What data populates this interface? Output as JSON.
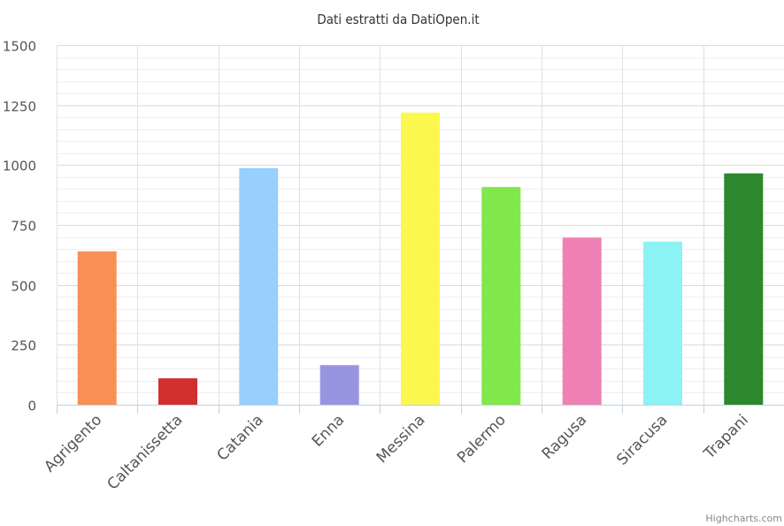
{
  "chart_data": {
    "type": "bar",
    "title": "Dati estratti da DatiOpen.it",
    "xlabel": "",
    "ylabel": "",
    "categories": [
      "Agrigento",
      "Caltanissetta",
      "Catania",
      "Enna",
      "Messina",
      "Palermo",
      "Ragusa",
      "Siracusa",
      "Trapani"
    ],
    "values": [
      640,
      110,
      987,
      165,
      1218,
      908,
      697,
      680,
      965
    ],
    "colors": [
      "#f89054",
      "#d12e2e",
      "#97cffd",
      "#9895e0",
      "#fbf74f",
      "#80e84a",
      "#ef80b4",
      "#8bf3f3",
      "#2c872d"
    ],
    "ylim": [
      0,
      1500
    ],
    "yticks": [
      0,
      250,
      500,
      750,
      1000,
      1250,
      1500
    ],
    "minor_grid_step": 50,
    "grid": true,
    "legend": "none"
  },
  "credits": "Highcharts.com"
}
